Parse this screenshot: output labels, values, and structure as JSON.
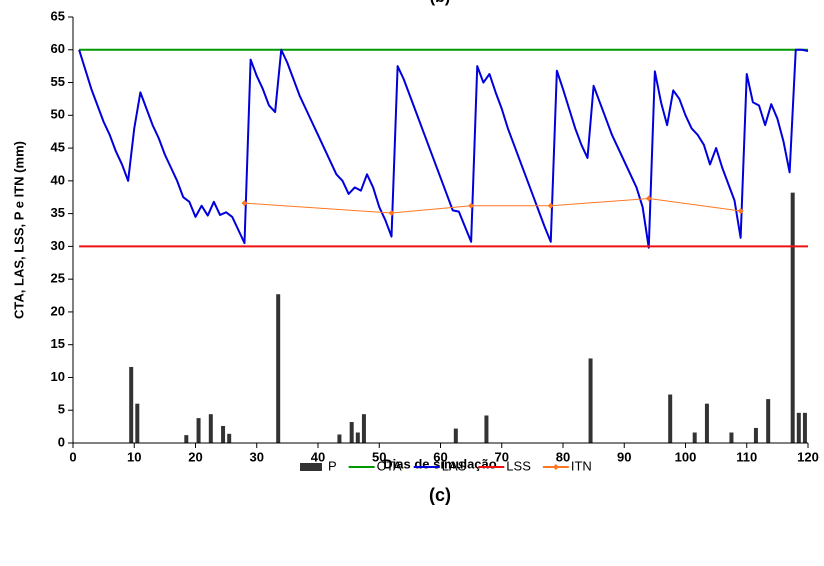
{
  "chart_data": {
    "type": "combo",
    "title": "(b)",
    "caption": "(c)",
    "xlabel": "Dias de simulação",
    "ylabel": "CTA, LAS, LSS, P e ITN (mm)",
    "xlim": [
      0,
      120
    ],
    "xticks": [
      0,
      10,
      20,
      30,
      40,
      50,
      60,
      70,
      80,
      90,
      100,
      110,
      120
    ],
    "ylim": [
      0,
      65
    ],
    "yticks": [
      0,
      5,
      10,
      15,
      20,
      25,
      30,
      35,
      40,
      45,
      50,
      55,
      60,
      65
    ],
    "series": [
      {
        "name": "P",
        "type": "bar",
        "color": "#333333",
        "x": [
          9.5,
          10.5,
          18.5,
          20.5,
          22.5,
          24.5,
          25.5,
          33.5,
          43.5,
          45.5,
          46.5,
          47.5,
          62.5,
          67.5,
          84.5,
          97.5,
          101.5,
          103.5,
          107.5,
          111.5,
          113.5,
          117.5,
          118.5,
          119.5
        ],
        "values": [
          11.6,
          6,
          1.2,
          3.8,
          4.4,
          2.6,
          1.4,
          22.7,
          1.3,
          3.2,
          1.6,
          4.4,
          2.2,
          4.2,
          12.9,
          7.4,
          1.6,
          6,
          1.6,
          2.3,
          6.7,
          38.2,
          4.6,
          4.6
        ]
      },
      {
        "name": "CTA",
        "type": "line",
        "color": "#009900",
        "x": [
          1,
          120
        ],
        "values": [
          60,
          60
        ]
      },
      {
        "name": "LAS",
        "type": "line",
        "color": "#0000dd",
        "x": [
          1,
          2,
          3,
          4,
          5,
          6,
          7,
          8,
          9,
          10,
          11,
          12,
          13,
          14,
          15,
          16,
          17,
          18,
          19,
          20,
          21,
          22,
          23,
          24,
          25,
          26,
          27,
          28,
          29,
          30,
          31,
          32,
          33,
          34,
          35,
          36,
          37,
          38,
          39,
          40,
          41,
          42,
          43,
          44,
          45,
          46,
          47,
          48,
          49,
          50,
          51,
          52,
          53,
          54,
          55,
          56,
          57,
          58,
          59,
          60,
          61,
          62,
          63,
          64,
          65,
          66,
          67,
          68,
          69,
          70,
          71,
          72,
          73,
          74,
          75,
          76,
          77,
          78,
          79,
          80,
          81,
          82,
          83,
          84,
          85,
          86,
          87,
          88,
          89,
          90,
          91,
          92,
          93,
          94,
          95,
          96,
          97,
          98,
          99,
          100,
          101,
          102,
          103,
          104,
          105,
          106,
          107,
          108,
          109,
          110,
          111,
          112,
          113,
          114,
          115,
          116,
          117,
          118,
          119,
          120
        ],
        "values": [
          60,
          57,
          54,
          51.5,
          49,
          47,
          44.5,
          42.5,
          40,
          48,
          53.5,
          51,
          48.5,
          46.5,
          44,
          42,
          40,
          37.5,
          36.8,
          34.5,
          36.2,
          34.7,
          36.8,
          34.8,
          35.2,
          34.5,
          32.5,
          30.5,
          58.5,
          56,
          54,
          51.5,
          50.5,
          60,
          58,
          55.5,
          53,
          51,
          49,
          47,
          45,
          43,
          41,
          40,
          38,
          39,
          38.5,
          41,
          39,
          36,
          34,
          31.5,
          57.5,
          55.5,
          53,
          50.5,
          48,
          45.5,
          43,
          40.5,
          38,
          35.5,
          35.3,
          33,
          30.7,
          57.5,
          55,
          56.3,
          53.5,
          51,
          48,
          45.5,
          43,
          40.5,
          38,
          35.5,
          33,
          30.7,
          56.8,
          54,
          51,
          48,
          45.5,
          43.5,
          54.5,
          52,
          49.5,
          47,
          45,
          43,
          41,
          39,
          36,
          29.8,
          56.7,
          52,
          48.5,
          53.8,
          52.5,
          50,
          48,
          47,
          45.5,
          42.5,
          45,
          42,
          39.5,
          37,
          31.3,
          56.3,
          52,
          51.5,
          48.5,
          51.7,
          49.5,
          46,
          41.3,
          60,
          60,
          59.8
        ]
      },
      {
        "name": "LSS",
        "type": "line",
        "color": "#ee1111",
        "x": [
          1,
          120
        ],
        "values": [
          30,
          30
        ]
      },
      {
        "name": "ITN",
        "type": "line",
        "color": "#ff7722",
        "markers": true,
        "x": [
          28,
          52,
          65,
          78,
          94,
          109
        ],
        "values": [
          36.6,
          35.1,
          36.2,
          36.2,
          37.3,
          35.4
        ]
      }
    ]
  }
}
